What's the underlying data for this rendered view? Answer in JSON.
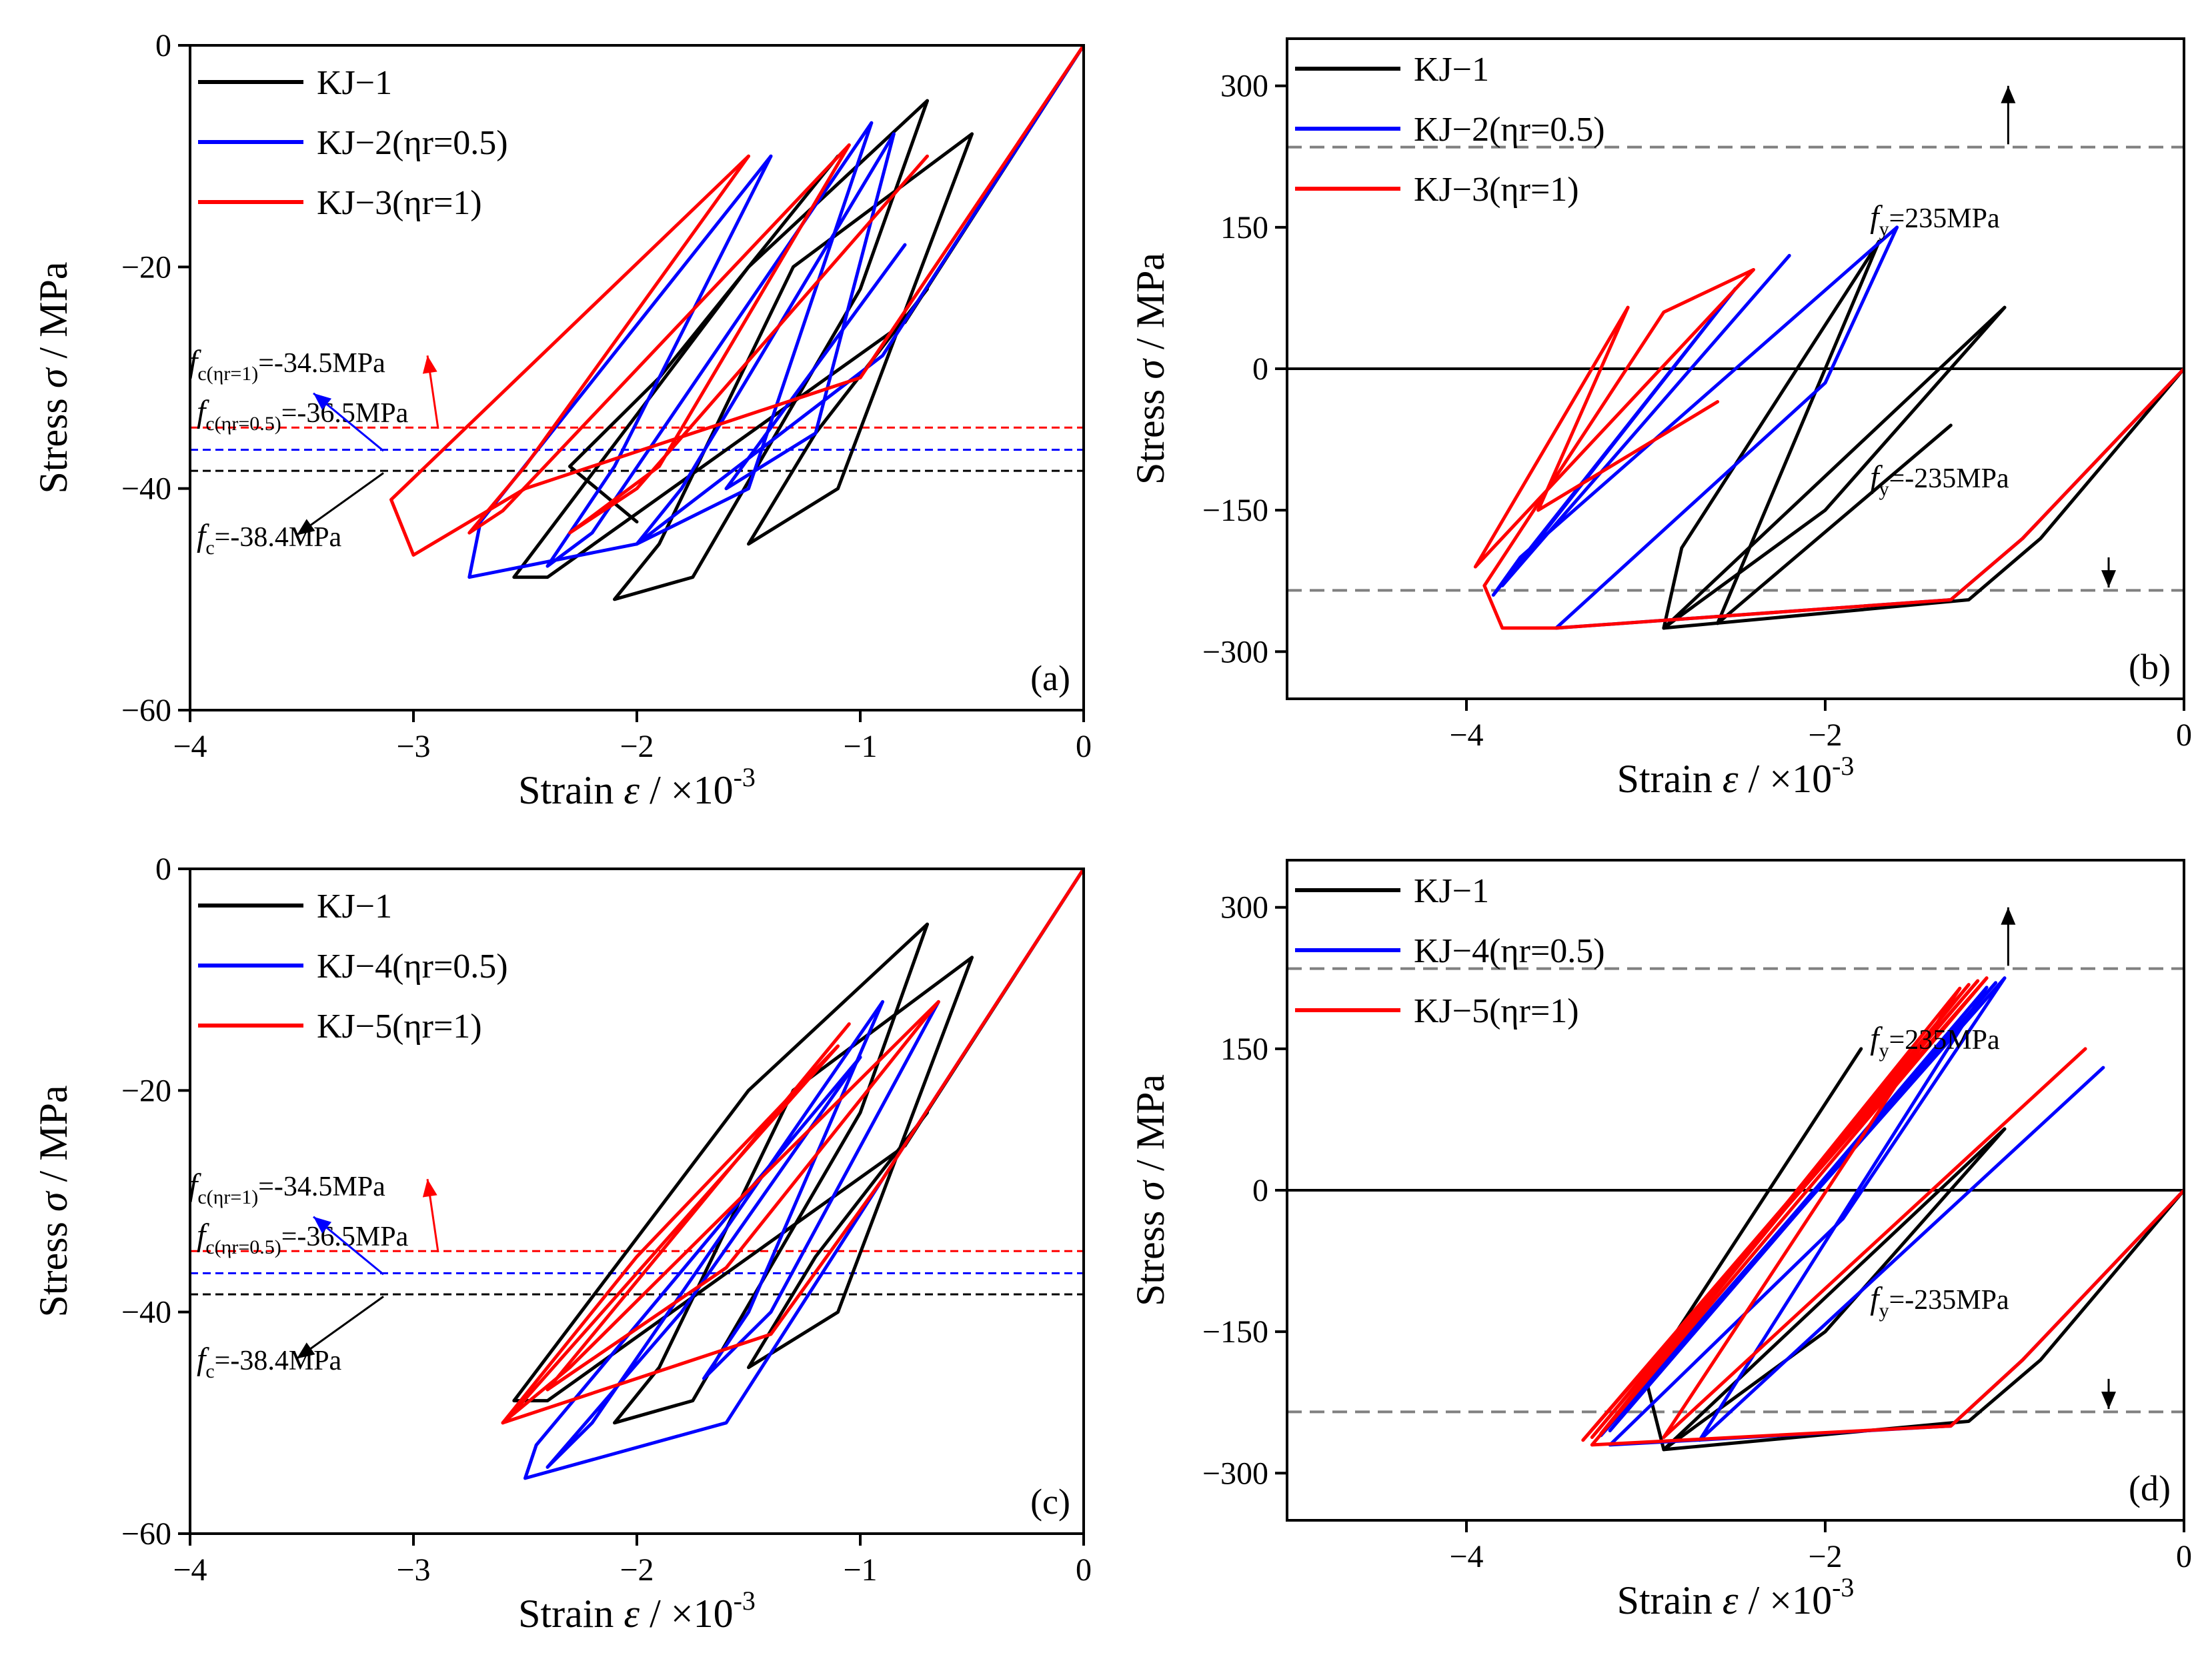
{
  "chart_data": [
    {
      "type": "line",
      "panel_label": "(a)",
      "xlabel_main": "Strain ",
      "xlabel_sym": "ε",
      "xlabel_unit": " / ×10",
      "xlabel_exp": "-3",
      "ylabel_main": "Stress ",
      "ylabel_sym": "σ",
      "ylabel_unit": " / MPa",
      "xlim": [
        -4,
        0
      ],
      "ylim": [
        -60,
        0
      ],
      "xticks": [
        -4,
        -3,
        -2,
        -1,
        0
      ],
      "xtick_labels": [
        "−4",
        "−3",
        "−2",
        "−1",
        "0"
      ],
      "yticks": [
        -60,
        -40,
        -20,
        0
      ],
      "ytick_labels": [
        "−60",
        "−40",
        "−20",
        "0"
      ],
      "legend_position": "top-left",
      "series": [
        {
          "name": "KJ−1",
          "color": "#000000",
          "loops": [
            {
              "x": [
                0,
                -0.8,
                -2.4,
                -2.55,
                -2.4,
                -1.5,
                -0.7
              ],
              "y": [
                0,
                -25,
                -48,
                -48,
                -44,
                -20,
                -5
              ]
            },
            {
              "x": [
                -0.7,
                -1.0,
                -1.75,
                -2.1,
                -1.9,
                -1.3,
                -0.5
              ],
              "y": [
                -5,
                -22,
                -48,
                -50,
                -45,
                -20,
                -8
              ]
            },
            {
              "x": [
                -0.5,
                -1.1,
                -1.5,
                -1.2,
                -0.7
              ],
              "y": [
                -8,
                -40,
                -45,
                -35,
                -22
              ]
            },
            {
              "x": [
                -2.0,
                -2.3,
                -1.9,
                -1.1
              ],
              "y": [
                -43,
                -38,
                -30,
                -10
              ]
            }
          ]
        },
        {
          "name": "KJ−2(ηr=0.5)",
          "color": "#0000ff",
          "loops": [
            {
              "x": [
                0,
                -0.9,
                -2.0,
                -2.75,
                -2.7,
                -1.4
              ],
              "y": [
                0,
                -28,
                -45,
                -48,
                -43,
                -10
              ]
            },
            {
              "x": [
                -1.4,
                -2.1,
                -2.4,
                -2.2,
                -0.95
              ],
              "y": [
                -10,
                -38,
                -47,
                -44,
                -7
              ]
            },
            {
              "x": [
                -0.95,
                -1.5,
                -2.0,
                -1.8,
                -0.85
              ],
              "y": [
                -7,
                -40,
                -45,
                -40,
                -8
              ]
            },
            {
              "x": [
                -0.85,
                -1.2,
                -1.6,
                -0.8
              ],
              "y": [
                -8,
                -35,
                -40,
                -18
              ]
            }
          ]
        },
        {
          "name": "KJ−3(ηr=1)",
          "color": "#ff0000",
          "loops": [
            {
              "x": [
                0,
                -1.0,
                -2.5,
                -3.0,
                -3.1,
                -1.5
              ],
              "y": [
                0,
                -30,
                -40,
                -46,
                -41,
                -10
              ]
            },
            {
              "x": [
                -1.5,
                -2.5,
                -2.75,
                -2.6,
                -1.05
              ],
              "y": [
                -10,
                -38,
                -44,
                -42,
                -9
              ]
            },
            {
              "x": [
                -1.05,
                -1.9,
                -2.3,
                -2.0,
                -0.7
              ],
              "y": [
                -9,
                -38,
                -44,
                -40,
                -10
              ]
            }
          ]
        }
      ],
      "ref_lines": [
        {
          "value": -34.5,
          "color": "#ff0000"
        },
        {
          "value": -36.5,
          "color": "#0000ff"
        },
        {
          "value": -38.4,
          "color": "#000000"
        }
      ],
      "annotations": [
        {
          "f": "f",
          "sub": "c(ηr=1)",
          "text": "=-34.5MPa",
          "color": "#ff0000"
        },
        {
          "f": "f",
          "sub": "c(ηr=0.5)",
          "text": "=-36.5MPa",
          "color": "#0000ff"
        },
        {
          "f": "f",
          "sub": "c",
          "text": "=-38.4MPa",
          "color": "#000000"
        }
      ]
    },
    {
      "type": "line",
      "panel_label": "(b)",
      "xlabel_main": "Strain ",
      "xlabel_sym": "ε",
      "xlabel_unit": " / ×10",
      "xlabel_exp": "-3",
      "ylabel_main": "Stress ",
      "ylabel_sym": "σ",
      "ylabel_unit": " / MPa",
      "xlim": [
        -5,
        0
      ],
      "ylim": [
        -350,
        350
      ],
      "xticks": [
        -4,
        -2,
        0
      ],
      "xtick_labels": [
        "−4",
        "−2",
        "0"
      ],
      "yticks": [
        -300,
        -150,
        0,
        150,
        300
      ],
      "ytick_labels": [
        "−300",
        "−150",
        "0",
        "150",
        "300"
      ],
      "legend_position": "top-left",
      "zero_line": true,
      "series": [
        {
          "name": "KJ−1",
          "color": "#000000",
          "loops": [
            {
              "x": [
                0,
                -0.8,
                -1.2,
                -2.9,
                -2.0,
                -1.0
              ],
              "y": [
                0,
                -180,
                -245,
                -275,
                -150,
                65
              ]
            },
            {
              "x": [
                -1.0,
                -2.9,
                -2.8,
                -1.7
              ],
              "y": [
                65,
                -275,
                -190,
                135
              ]
            },
            {
              "x": [
                -1.7,
                -2.6,
                -1.3
              ],
              "y": [
                135,
                -270,
                -60
              ]
            }
          ]
        },
        {
          "name": "KJ−2(ηr=0.5)",
          "color": "#0000ff",
          "loops": [
            {
              "x": [
                0,
                -0.9,
                -1.3,
                -3.5,
                -2.0,
                -1.6
              ],
              "y": [
                0,
                -180,
                -245,
                -275,
                -15,
                150
              ]
            },
            {
              "x": [
                -1.6,
                -3.7,
                -3.85,
                -2.5
              ],
              "y": [
                150,
                -200,
                -240,
                85
              ]
            },
            {
              "x": [
                -2.5,
                -3.8,
                -2.2
              ],
              "y": [
                85,
                -230,
                120
              ]
            }
          ]
        },
        {
          "name": "KJ−3(ηr=1)",
          "color": "#ff0000",
          "loops": [
            {
              "x": [
                0,
                -0.9,
                -1.3,
                -3.5,
                -3.8,
                -3.9
              ],
              "y": [
                0,
                -180,
                -245,
                -275,
                -275,
                -230
              ]
            },
            {
              "x": [
                -3.9,
                -2.9,
                -2.4
              ],
              "y": [
                -230,
                60,
                105
              ]
            },
            {
              "x": [
                -2.4,
                -3.95,
                -3.1
              ],
              "y": [
                105,
                -210,
                65
              ]
            },
            {
              "x": [
                -3.1,
                -3.6,
                -2.6
              ],
              "y": [
                65,
                -150,
                -35
              ]
            }
          ]
        }
      ],
      "ref_lines": [
        {
          "value": 235,
          "color": "#808080"
        },
        {
          "value": -235,
          "color": "#808080"
        }
      ],
      "annotations": [
        {
          "f": "f",
          "sub": "y",
          "text": "=235MPa",
          "color": "#000000"
        },
        {
          "f": "f",
          "sub": "y",
          "text": "=-235MPa",
          "color": "#000000"
        }
      ]
    },
    {
      "type": "line",
      "panel_label": "(c)",
      "xlabel_main": "Strain ",
      "xlabel_sym": "ε",
      "xlabel_unit": " / ×10",
      "xlabel_exp": "-3",
      "ylabel_main": "Stress ",
      "ylabel_sym": "σ",
      "ylabel_unit": " / MPa",
      "xlim": [
        -4,
        0
      ],
      "ylim": [
        -60,
        0
      ],
      "xticks": [
        -4,
        -3,
        -2,
        -1,
        0
      ],
      "xtick_labels": [
        "−4",
        "−3",
        "−2",
        "−1",
        "0"
      ],
      "yticks": [
        -60,
        -40,
        -20,
        0
      ],
      "ytick_labels": [
        "−60",
        "−40",
        "−20",
        "0"
      ],
      "legend_position": "top-left",
      "series": [
        {
          "name": "KJ−1",
          "color": "#000000",
          "loops": [
            {
              "x": [
                0,
                -0.8,
                -2.4,
                -2.55,
                -2.4,
                -1.5,
                -0.7
              ],
              "y": [
                0,
                -25,
                -48,
                -48,
                -44,
                -20,
                -5
              ]
            },
            {
              "x": [
                -0.7,
                -1.0,
                -1.75,
                -2.1,
                -1.9,
                -1.3,
                -0.5
              ],
              "y": [
                -5,
                -22,
                -48,
                -50,
                -45,
                -20,
                -8
              ]
            },
            {
              "x": [
                -0.5,
                -1.1,
                -1.5,
                -1.2,
                -0.7
              ],
              "y": [
                -8,
                -40,
                -45,
                -35,
                -22
              ]
            }
          ]
        },
        {
          "name": "KJ−4(ηr=0.5)",
          "color": "#0000ff",
          "loops": [
            {
              "x": [
                0,
                -0.9,
                -1.6,
                -2.5,
                -2.45,
                -1.0
              ],
              "y": [
                0,
                -28,
                -50,
                -55,
                -52,
                -17
              ]
            },
            {
              "x": [
                -1.0,
                -1.8,
                -2.4,
                -2.2,
                -0.9
              ],
              "y": [
                -17,
                -40,
                -54,
                -50,
                -12
              ]
            },
            {
              "x": [
                -0.9,
                -1.5,
                -1.7,
                -1.4,
                -0.65
              ],
              "y": [
                -12,
                -40,
                -46,
                -40,
                -12
              ]
            }
          ]
        },
        {
          "name": "KJ−5(ηr=1)",
          "color": "#ff0000",
          "loops": [
            {
              "x": [
                0,
                -0.9,
                -1.4,
                -2.6,
                -2.55,
                -1.1
              ],
              "y": [
                0,
                -28,
                -42,
                -50,
                -49,
                -16
              ]
            },
            {
              "x": [
                -1.1,
                -2.0,
                -2.6,
                -2.3,
                -0.65
              ],
              "y": [
                -16,
                -35,
                -50,
                -45,
                -12
              ]
            },
            {
              "x": [
                -0.65,
                -1.6,
                -2.4,
                -1.05
              ],
              "y": [
                -12,
                -36,
                -47,
                -14
              ]
            }
          ]
        }
      ],
      "ref_lines": [
        {
          "value": -34.5,
          "color": "#ff0000"
        },
        {
          "value": -36.5,
          "color": "#0000ff"
        },
        {
          "value": -38.4,
          "color": "#000000"
        }
      ],
      "annotations": [
        {
          "f": "f",
          "sub": "c(ηr=1)",
          "text": "=-34.5MPa",
          "color": "#ff0000"
        },
        {
          "f": "f",
          "sub": "c(ηr=0.5)",
          "text": "=-36.5MPa",
          "color": "#0000ff"
        },
        {
          "f": "f",
          "sub": "c",
          "text": "=-38.4MPa",
          "color": "#000000"
        }
      ]
    },
    {
      "type": "line",
      "panel_label": "(d)",
      "xlabel_main": "Strain ",
      "xlabel_sym": "ε",
      "xlabel_unit": " / ×10",
      "xlabel_exp": "-3",
      "ylabel_main": "Stress ",
      "ylabel_sym": "σ",
      "ylabel_unit": " / MPa",
      "xlim": [
        -5,
        0
      ],
      "ylim": [
        -350,
        350
      ],
      "xticks": [
        -4,
        -2,
        0
      ],
      "xtick_labels": [
        "−4",
        "−2",
        "0"
      ],
      "yticks": [
        -300,
        -150,
        0,
        150,
        300
      ],
      "ytick_labels": [
        "−300",
        "−150",
        "0",
        "150",
        "300"
      ],
      "legend_position": "top-left",
      "zero_line": true,
      "series": [
        {
          "name": "KJ−1",
          "color": "#000000",
          "loops": [
            {
              "x": [
                0,
                -0.8,
                -1.2,
                -2.9,
                -2.0,
                -1.0
              ],
              "y": [
                0,
                -180,
                -245,
                -275,
                -150,
                65
              ]
            },
            {
              "x": [
                -1.0,
                -2.9,
                -3.0,
                -1.8
              ],
              "y": [
                65,
                -275,
                -200,
                150
              ]
            }
          ]
        },
        {
          "name": "KJ−4(ηr=0.5)",
          "color": "#0000ff",
          "loops": [
            {
              "x": [
                0,
                -0.9,
                -1.3,
                -3.2,
                -1.9,
                -1.0
              ],
              "y": [
                0,
                -180,
                -250,
                -270,
                -30,
                225
              ]
            },
            {
              "x": [
                -1.0,
                -3.25,
                -1.05
              ],
              "y": [
                225,
                -260,
                220
              ]
            },
            {
              "x": [
                -1.05,
                -3.2,
                -1.1
              ],
              "y": [
                220,
                -255,
                215
              ]
            },
            {
              "x": [
                -1.1,
                -2.7,
                -0.45
              ],
              "y": [
                215,
                -265,
                130
              ]
            }
          ]
        },
        {
          "name": "KJ−5(ηr=1)",
          "color": "#ff0000",
          "loops": [
            {
              "x": [
                0,
                -0.9,
                -1.3,
                -3.3,
                -2.1,
                -1.1
              ],
              "y": [
                0,
                -180,
                -250,
                -270,
                0,
                225
              ]
            },
            {
              "x": [
                -1.1,
                -3.35,
                -1.15
              ],
              "y": [
                225,
                -265,
                222
              ]
            },
            {
              "x": [
                -1.15,
                -3.3,
                -1.2
              ],
              "y": [
                222,
                -262,
                218
              ]
            },
            {
              "x": [
                -1.2,
                -3.25,
                -1.25
              ],
              "y": [
                218,
                -258,
                214
              ]
            },
            {
              "x": [
                -1.25,
                -2.9,
                -0.55
              ],
              "y": [
                214,
                -262,
                150
              ]
            }
          ]
        }
      ],
      "ref_lines": [
        {
          "value": 235,
          "color": "#808080"
        },
        {
          "value": -235,
          "color": "#808080"
        }
      ],
      "annotations": [
        {
          "f": "f",
          "sub": "y",
          "text": "=235MPa",
          "color": "#000000"
        },
        {
          "f": "f",
          "sub": "y",
          "text": "=-235MPa",
          "color": "#000000"
        }
      ]
    }
  ]
}
